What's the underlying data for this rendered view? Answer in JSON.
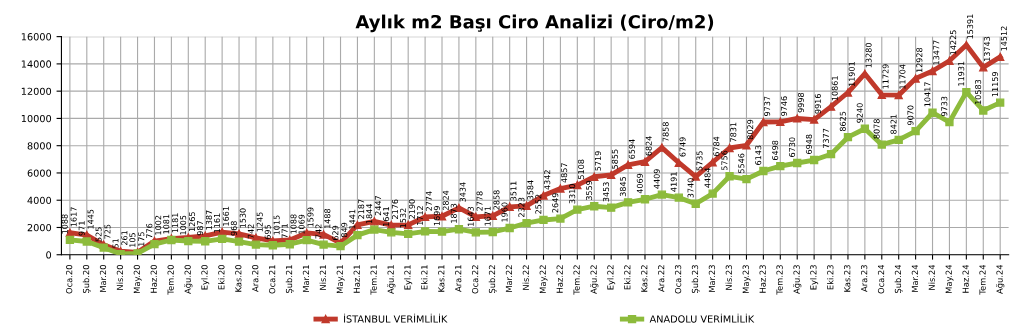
{
  "chart_data": {
    "type": "line",
    "title": "Aylık m2 Başı Ciro Analizi (Ciro/m2)",
    "categories": [
      "Oca.20",
      "Şub.20",
      "Mar.20",
      "Nis.20",
      "May.20",
      "Haz.20",
      "Tem.20",
      "Ağu.20",
      "Eyl.20",
      "Eki.20",
      "Kas.20",
      "Ara.20",
      "Oca.21",
      "Şub.21",
      "Mar.21",
      "Nis.21",
      "May.21",
      "Haz.21",
      "Tem.21",
      "Ağu.21",
      "Eyl.21",
      "Eki.21",
      "Kas.21",
      "Ara.21",
      "Oca.22",
      "Şub.22",
      "Mar.22",
      "Nis.22",
      "May.22",
      "Haz.22",
      "Tem.22",
      "Ağu.22",
      "Eyl.22",
      "Eki.22",
      "Kas.22",
      "Ara.22",
      "Oca.23",
      "Şub.23",
      "Mar.23",
      "Nis.23",
      "May.23",
      "Haz.23",
      "Tem.23",
      "Ağu.23",
      "Eyl.23",
      "Eki.23",
      "Kas.23",
      "Ara.23",
      "Oca.24",
      "Şub.24",
      "Mar.24",
      "Nis.24",
      "May.24",
      "Haz.24",
      "Tem.24",
      "Ağu.24"
    ],
    "series": [
      {
        "name": "İSTANBUL VERİMLİLİK",
        "color": "#c0392b",
        "marker": "triangle",
        "values": [
          1617,
          1445,
          725,
          261,
          175,
          1002,
          1181,
          1265,
          1387,
          1661,
          1530,
          1245,
          1015,
          1088,
          1599,
          1488,
          849,
          2187,
          2447,
          2176,
          2190,
          2774,
          2824,
          3434,
          2778,
          2858,
          3511,
          3584,
          4342,
          4857,
          5108,
          5719,
          5855,
          6594,
          6824,
          7858,
          6749,
          5735,
          6784,
          7831,
          8029,
          9737,
          9746,
          9998,
          9916,
          10861,
          11901,
          13280,
          11729,
          11704,
          12928,
          13477,
          14225,
          15391,
          13743,
          14512
        ]
      },
      {
        "name": "ANADOLU VERİMLİLİK",
        "color": "#8dbb3c",
        "marker": "square",
        "values": [
          1088,
          971,
          525,
          51,
          105,
          776,
          1081,
          1005,
          987,
          1161,
          968,
          742,
          695,
          771,
          1069,
          742,
          629,
          1441,
          1844,
          1641,
          1532,
          1712,
          1699,
          1873,
          1643,
          1671,
          1960,
          2323,
          2552,
          2649,
          3310,
          3559,
          3453,
          3845,
          4069,
          4409,
          4191,
          3740,
          4484,
          5756,
          5546,
          6143,
          6498,
          6730,
          6948,
          7377,
          8625,
          9240,
          8078,
          8421,
          9070,
          10417,
          9733,
          11931,
          10583,
          11159
        ]
      }
    ],
    "ylim": [
      0,
      16000
    ],
    "yticks": [
      0,
      2000,
      4000,
      6000,
      8000,
      10000,
      12000,
      14000,
      16000
    ],
    "grid": true,
    "legend": "bottom",
    "data_labels": true,
    "line_style": "solid"
  }
}
